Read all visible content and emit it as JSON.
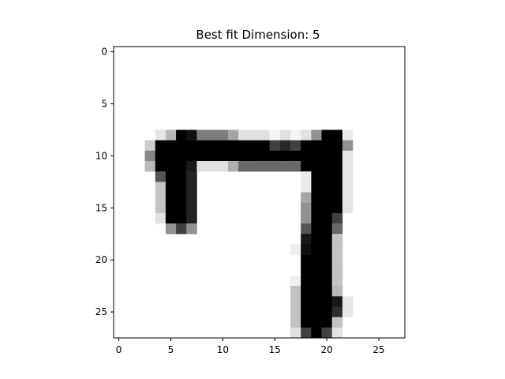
{
  "chart_data": {
    "type": "heatmap",
    "title": "Best fit Dimension: 5",
    "xlabel": "",
    "ylabel": "",
    "rows": 28,
    "cols": 28,
    "colormap": "gray_r",
    "value_range": [
      0,
      255
    ],
    "xlim": [
      -0.5,
      27.5
    ],
    "ylim": [
      27.5,
      -0.5
    ],
    "x_ticks": [
      0,
      5,
      10,
      15,
      20,
      25
    ],
    "y_ticks": [
      0,
      5,
      10,
      15,
      20,
      25
    ],
    "x_tick_labels": [
      "0",
      "5",
      "10",
      "15",
      "20",
      "25"
    ],
    "y_tick_labels": [
      "0",
      "5",
      "10",
      "15",
      "20",
      "25"
    ],
    "grid": false,
    "pixels": [
      {
        "r": 8,
        "c": 4,
        "v": 25
      },
      {
        "r": 8,
        "c": 5,
        "v": 70
      },
      {
        "r": 8,
        "c": 6,
        "v": 255
      },
      {
        "r": 8,
        "c": 7,
        "v": 240
      },
      {
        "r": 8,
        "c": 8,
        "v": 130
      },
      {
        "r": 8,
        "c": 9,
        "v": 130
      },
      {
        "r": 8,
        "c": 10,
        "v": 130
      },
      {
        "r": 8,
        "c": 11,
        "v": 90
      },
      {
        "r": 8,
        "c": 12,
        "v": 30
      },
      {
        "r": 8,
        "c": 13,
        "v": 30
      },
      {
        "r": 8,
        "c": 14,
        "v": 30
      },
      {
        "r": 8,
        "c": 15,
        "v": 10
      },
      {
        "r": 8,
        "c": 16,
        "v": 30
      },
      {
        "r": 8,
        "c": 17,
        "v": 10
      },
      {
        "r": 8,
        "c": 18,
        "v": 30
      },
      {
        "r": 8,
        "c": 19,
        "v": 110
      },
      {
        "r": 8,
        "c": 20,
        "v": 255
      },
      {
        "r": 8,
        "c": 21,
        "v": 255
      },
      {
        "r": 8,
        "c": 22,
        "v": 20
      },
      {
        "r": 9,
        "c": 3,
        "v": 50
      },
      {
        "r": 9,
        "c": 4,
        "v": 255
      },
      {
        "r": 9,
        "c": 5,
        "v": 255
      },
      {
        "r": 9,
        "c": 6,
        "v": 255
      },
      {
        "r": 9,
        "c": 7,
        "v": 255
      },
      {
        "r": 9,
        "c": 8,
        "v": 255
      },
      {
        "r": 9,
        "c": 9,
        "v": 255
      },
      {
        "r": 9,
        "c": 10,
        "v": 255
      },
      {
        "r": 9,
        "c": 11,
        "v": 255
      },
      {
        "r": 9,
        "c": 12,
        "v": 255
      },
      {
        "r": 9,
        "c": 13,
        "v": 255
      },
      {
        "r": 9,
        "c": 14,
        "v": 255
      },
      {
        "r": 9,
        "c": 15,
        "v": 190
      },
      {
        "r": 9,
        "c": 16,
        "v": 215
      },
      {
        "r": 9,
        "c": 17,
        "v": 190
      },
      {
        "r": 9,
        "c": 18,
        "v": 255
      },
      {
        "r": 9,
        "c": 19,
        "v": 255
      },
      {
        "r": 9,
        "c": 20,
        "v": 255
      },
      {
        "r": 9,
        "c": 21,
        "v": 255
      },
      {
        "r": 9,
        "c": 22,
        "v": 110
      },
      {
        "r": 10,
        "c": 3,
        "v": 120
      },
      {
        "r": 10,
        "c": 4,
        "v": 255
      },
      {
        "r": 10,
        "c": 5,
        "v": 255
      },
      {
        "r": 10,
        "c": 6,
        "v": 255
      },
      {
        "r": 10,
        "c": 7,
        "v": 255
      },
      {
        "r": 10,
        "c": 8,
        "v": 255
      },
      {
        "r": 10,
        "c": 9,
        "v": 255
      },
      {
        "r": 10,
        "c": 10,
        "v": 255
      },
      {
        "r": 10,
        "c": 11,
        "v": 255
      },
      {
        "r": 10,
        "c": 12,
        "v": 255
      },
      {
        "r": 10,
        "c": 13,
        "v": 255
      },
      {
        "r": 10,
        "c": 14,
        "v": 255
      },
      {
        "r": 10,
        "c": 15,
        "v": 255
      },
      {
        "r": 10,
        "c": 16,
        "v": 255
      },
      {
        "r": 10,
        "c": 17,
        "v": 255
      },
      {
        "r": 10,
        "c": 18,
        "v": 255
      },
      {
        "r": 10,
        "c": 19,
        "v": 255
      },
      {
        "r": 10,
        "c": 20,
        "v": 255
      },
      {
        "r": 10,
        "c": 21,
        "v": 255
      },
      {
        "r": 10,
        "c": 22,
        "v": 25
      },
      {
        "r": 11,
        "c": 3,
        "v": 70
      },
      {
        "r": 11,
        "c": 4,
        "v": 255
      },
      {
        "r": 11,
        "c": 5,
        "v": 255
      },
      {
        "r": 11,
        "c": 6,
        "v": 255
      },
      {
        "r": 11,
        "c": 7,
        "v": 230
      },
      {
        "r": 11,
        "c": 8,
        "v": 30
      },
      {
        "r": 11,
        "c": 9,
        "v": 30
      },
      {
        "r": 11,
        "c": 10,
        "v": 30
      },
      {
        "r": 11,
        "c": 11,
        "v": 80
      },
      {
        "r": 11,
        "c": 12,
        "v": 150
      },
      {
        "r": 11,
        "c": 13,
        "v": 150
      },
      {
        "r": 11,
        "c": 14,
        "v": 150
      },
      {
        "r": 11,
        "c": 15,
        "v": 150
      },
      {
        "r": 11,
        "c": 16,
        "v": 150
      },
      {
        "r": 11,
        "c": 17,
        "v": 150
      },
      {
        "r": 11,
        "c": 18,
        "v": 255
      },
      {
        "r": 11,
        "c": 19,
        "v": 255
      },
      {
        "r": 11,
        "c": 20,
        "v": 255
      },
      {
        "r": 11,
        "c": 21,
        "v": 255
      },
      {
        "r": 11,
        "c": 22,
        "v": 25
      },
      {
        "r": 12,
        "c": 4,
        "v": 170
      },
      {
        "r": 12,
        "c": 5,
        "v": 255
      },
      {
        "r": 12,
        "c": 6,
        "v": 255
      },
      {
        "r": 12,
        "c": 7,
        "v": 220
      },
      {
        "r": 12,
        "c": 18,
        "v": 20
      },
      {
        "r": 12,
        "c": 19,
        "v": 255
      },
      {
        "r": 12,
        "c": 20,
        "v": 255
      },
      {
        "r": 12,
        "c": 21,
        "v": 255
      },
      {
        "r": 12,
        "c": 22,
        "v": 25
      },
      {
        "r": 13,
        "c": 4,
        "v": 60
      },
      {
        "r": 13,
        "c": 5,
        "v": 255
      },
      {
        "r": 13,
        "c": 6,
        "v": 255
      },
      {
        "r": 13,
        "c": 7,
        "v": 220
      },
      {
        "r": 13,
        "c": 18,
        "v": 20
      },
      {
        "r": 13,
        "c": 19,
        "v": 255
      },
      {
        "r": 13,
        "c": 20,
        "v": 255
      },
      {
        "r": 13,
        "c": 21,
        "v": 255
      },
      {
        "r": 13,
        "c": 22,
        "v": 25
      },
      {
        "r": 14,
        "c": 4,
        "v": 60
      },
      {
        "r": 14,
        "c": 5,
        "v": 255
      },
      {
        "r": 14,
        "c": 6,
        "v": 255
      },
      {
        "r": 14,
        "c": 7,
        "v": 220
      },
      {
        "r": 14,
        "c": 18,
        "v": 90
      },
      {
        "r": 14,
        "c": 19,
        "v": 255
      },
      {
        "r": 14,
        "c": 20,
        "v": 255
      },
      {
        "r": 14,
        "c": 21,
        "v": 255
      },
      {
        "r": 14,
        "c": 22,
        "v": 25
      },
      {
        "r": 15,
        "c": 4,
        "v": 60
      },
      {
        "r": 15,
        "c": 5,
        "v": 255
      },
      {
        "r": 15,
        "c": 6,
        "v": 255
      },
      {
        "r": 15,
        "c": 7,
        "v": 220
      },
      {
        "r": 15,
        "c": 18,
        "v": 110
      },
      {
        "r": 15,
        "c": 19,
        "v": 255
      },
      {
        "r": 15,
        "c": 20,
        "v": 255
      },
      {
        "r": 15,
        "c": 21,
        "v": 255
      },
      {
        "r": 15,
        "c": 22,
        "v": 25
      },
      {
        "r": 16,
        "c": 4,
        "v": 30
      },
      {
        "r": 16,
        "c": 5,
        "v": 255
      },
      {
        "r": 16,
        "c": 6,
        "v": 255
      },
      {
        "r": 16,
        "c": 7,
        "v": 220
      },
      {
        "r": 16,
        "c": 18,
        "v": 110
      },
      {
        "r": 16,
        "c": 19,
        "v": 255
      },
      {
        "r": 16,
        "c": 20,
        "v": 255
      },
      {
        "r": 16,
        "c": 21,
        "v": 190
      },
      {
        "r": 17,
        "c": 5,
        "v": 110
      },
      {
        "r": 17,
        "c": 6,
        "v": 190
      },
      {
        "r": 17,
        "c": 7,
        "v": 110
      },
      {
        "r": 17,
        "c": 18,
        "v": 170
      },
      {
        "r": 17,
        "c": 19,
        "v": 255
      },
      {
        "r": 17,
        "c": 20,
        "v": 255
      },
      {
        "r": 17,
        "c": 21,
        "v": 150
      },
      {
        "r": 18,
        "c": 18,
        "v": 230
      },
      {
        "r": 18,
        "c": 19,
        "v": 255
      },
      {
        "r": 18,
        "c": 20,
        "v": 255
      },
      {
        "r": 18,
        "c": 21,
        "v": 60
      },
      {
        "r": 19,
        "c": 17,
        "v": 15
      },
      {
        "r": 19,
        "c": 18,
        "v": 240
      },
      {
        "r": 19,
        "c": 19,
        "v": 255
      },
      {
        "r": 19,
        "c": 20,
        "v": 255
      },
      {
        "r": 19,
        "c": 21,
        "v": 60
      },
      {
        "r": 20,
        "c": 18,
        "v": 255
      },
      {
        "r": 20,
        "c": 19,
        "v": 255
      },
      {
        "r": 20,
        "c": 20,
        "v": 255
      },
      {
        "r": 20,
        "c": 21,
        "v": 60
      },
      {
        "r": 21,
        "c": 18,
        "v": 255
      },
      {
        "r": 21,
        "c": 19,
        "v": 255
      },
      {
        "r": 21,
        "c": 20,
        "v": 255
      },
      {
        "r": 21,
        "c": 21,
        "v": 60
      },
      {
        "r": 22,
        "c": 17,
        "v": 15
      },
      {
        "r": 22,
        "c": 18,
        "v": 255
      },
      {
        "r": 22,
        "c": 19,
        "v": 255
      },
      {
        "r": 22,
        "c": 20,
        "v": 255
      },
      {
        "r": 22,
        "c": 21,
        "v": 60
      },
      {
        "r": 23,
        "c": 17,
        "v": 60
      },
      {
        "r": 23,
        "c": 18,
        "v": 255
      },
      {
        "r": 23,
        "c": 19,
        "v": 255
      },
      {
        "r": 23,
        "c": 20,
        "v": 255
      },
      {
        "r": 23,
        "c": 21,
        "v": 70
      },
      {
        "r": 24,
        "c": 17,
        "v": 60
      },
      {
        "r": 24,
        "c": 18,
        "v": 255
      },
      {
        "r": 24,
        "c": 19,
        "v": 255
      },
      {
        "r": 24,
        "c": 20,
        "v": 255
      },
      {
        "r": 24,
        "c": 21,
        "v": 230
      },
      {
        "r": 24,
        "c": 22,
        "v": 25
      },
      {
        "r": 25,
        "c": 17,
        "v": 60
      },
      {
        "r": 25,
        "c": 18,
        "v": 255
      },
      {
        "r": 25,
        "c": 19,
        "v": 255
      },
      {
        "r": 25,
        "c": 20,
        "v": 255
      },
      {
        "r": 25,
        "c": 21,
        "v": 210
      },
      {
        "r": 25,
        "c": 22,
        "v": 25
      },
      {
        "r": 26,
        "c": 17,
        "v": 60
      },
      {
        "r": 26,
        "c": 18,
        "v": 255
      },
      {
        "r": 26,
        "c": 19,
        "v": 255
      },
      {
        "r": 26,
        "c": 20,
        "v": 255
      },
      {
        "r": 26,
        "c": 21,
        "v": 60
      },
      {
        "r": 27,
        "c": 17,
        "v": 30
      },
      {
        "r": 27,
        "c": 18,
        "v": 190
      },
      {
        "r": 27,
        "c": 19,
        "v": 255
      },
      {
        "r": 27,
        "c": 20,
        "v": 190
      },
      {
        "r": 27,
        "c": 21,
        "v": 30
      }
    ]
  }
}
